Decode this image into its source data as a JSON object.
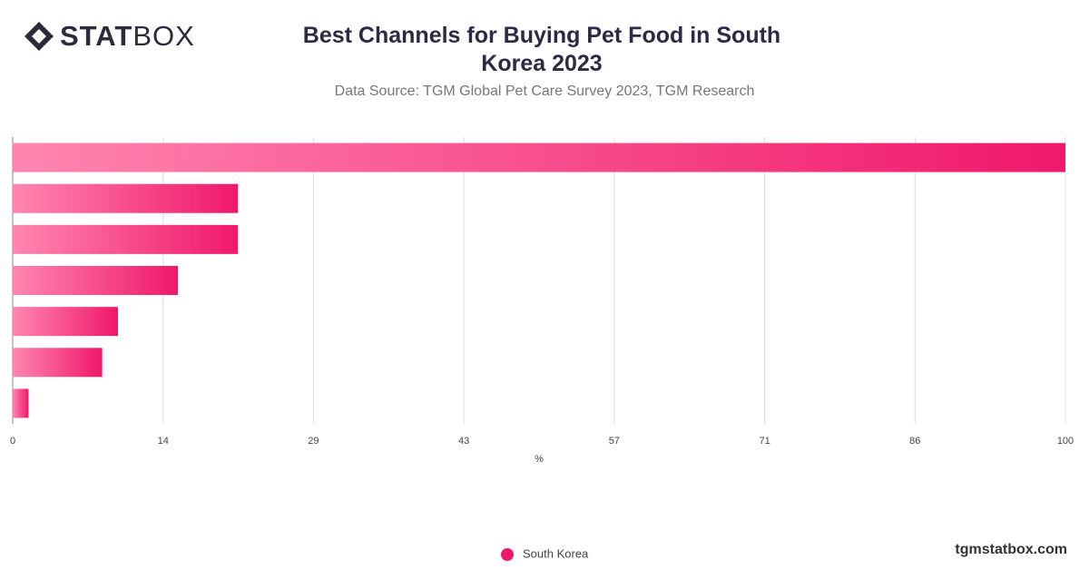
{
  "chart_data": {
    "type": "bar",
    "orientation": "horizontal",
    "title": "Best Channels for Buying Pet Food in South Korea 2023",
    "subtitle": "Data Source: TGM Global Pet Care Survey 2023, TGM Research",
    "x_label": "%",
    "categories": [
      null,
      null,
      null,
      null,
      null,
      null,
      null
    ],
    "series": [
      {
        "name": "South Korea",
        "color": "#f0186a",
        "values": [
          100,
          21.4,
          21.4,
          15.7,
          10,
          8.5,
          1.5
        ]
      }
    ],
    "xlim": [
      0,
      100
    ],
    "xticks": [
      0,
      {
        "value": 14.29,
        "label": "14"
      },
      {
        "value": 28.57,
        "label": "29"
      },
      {
        "value": 42.86,
        "label": "43"
      },
      {
        "value": 57.14,
        "label": "57"
      },
      {
        "value": 71.43,
        "label": "71"
      },
      {
        "value": 85.71,
        "label": "86"
      },
      100
    ],
    "grid": true,
    "legend": "bottom"
  },
  "logo": {
    "bold": "STAT",
    "light": "BOX"
  },
  "footer": "tgmstatbox.com"
}
